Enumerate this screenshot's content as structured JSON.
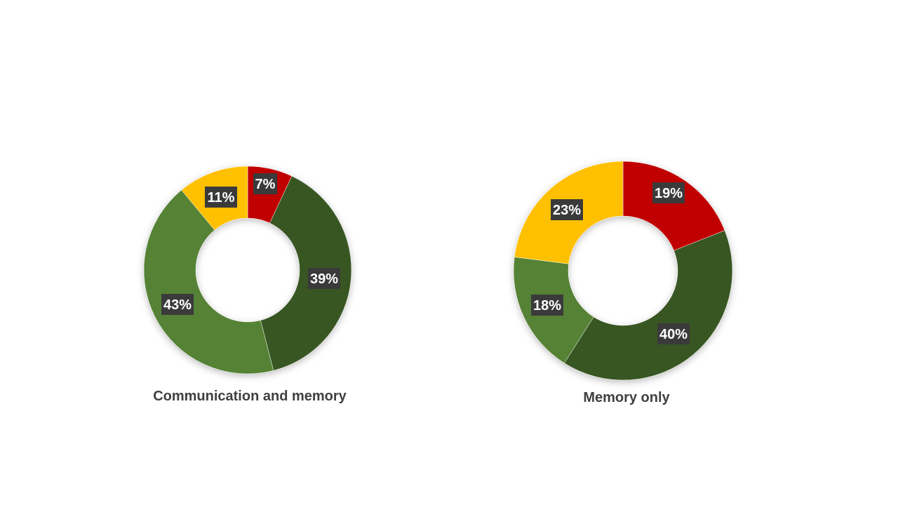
{
  "chart_data": [
    {
      "type": "pie",
      "title": "Communication and memory",
      "slices": [
        {
          "label": "7%",
          "value": 7,
          "color": "#c00000"
        },
        {
          "label": "39%",
          "value": 39,
          "color": "#375623"
        },
        {
          "label": "43%",
          "value": 43,
          "color": "#548235"
        },
        {
          "label": "11%",
          "value": 11,
          "color": "#ffc000"
        }
      ]
    },
    {
      "type": "pie",
      "title": "Memory only",
      "slices": [
        {
          "label": "19%",
          "value": 19,
          "color": "#c00000"
        },
        {
          "label": "40%",
          "value": 40,
          "color": "#375623"
        },
        {
          "label": "18%",
          "value": 18,
          "color": "#548235"
        },
        {
          "label": "23%",
          "value": 23,
          "color": "#ffc000"
        }
      ]
    }
  ]
}
